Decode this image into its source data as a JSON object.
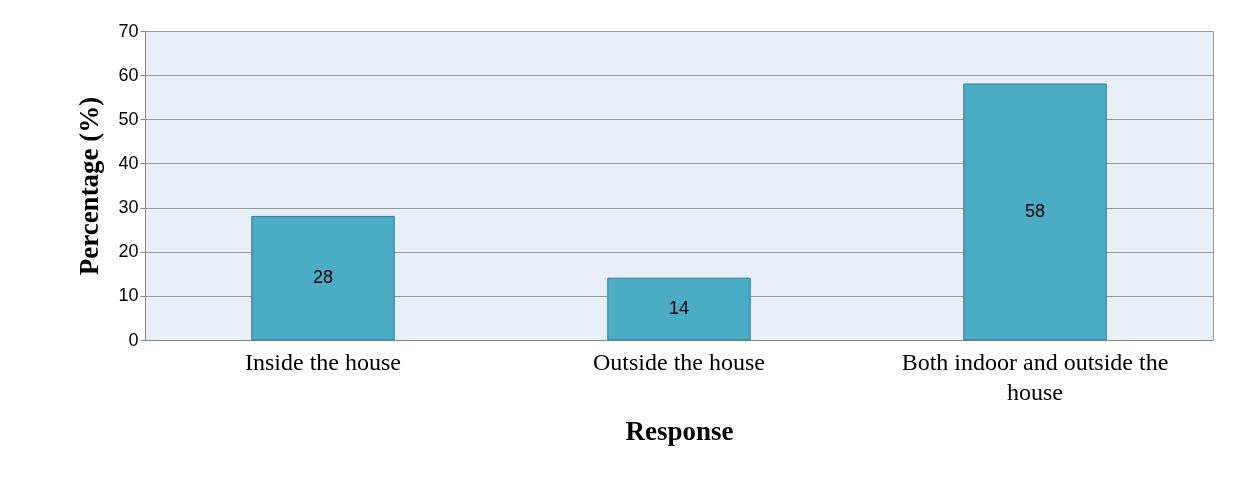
{
  "chart_data": {
    "type": "bar",
    "xlabel": "Response",
    "ylabel": "Percentage (%)",
    "categories": [
      "Inside the house",
      "Outside the house",
      "Both indoor and outside the house"
    ],
    "values": [
      28,
      14,
      58
    ],
    "color": "#4bacc6",
    "ylim": [
      0,
      70
    ],
    "yticks": [
      0,
      10,
      20,
      30,
      40,
      50,
      60,
      70
    ],
    "grid": "y",
    "data_labels": true
  }
}
